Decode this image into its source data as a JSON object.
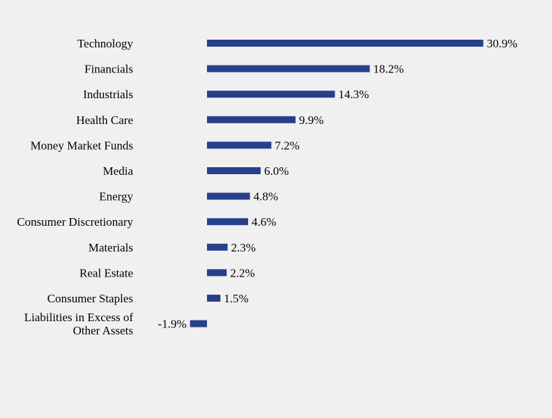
{
  "chart_data": {
    "type": "bar",
    "orientation": "horizontal",
    "categories": [
      "Technology",
      "Financials",
      "Industrials",
      "Health Care",
      "Money Market Funds",
      "Media",
      "Energy",
      "Consumer Discretionary",
      "Materials",
      "Real Estate",
      "Consumer Staples",
      "Liabilities in Excess of Other Assets"
    ],
    "category_lines": [
      [
        "Technology"
      ],
      [
        "Financials"
      ],
      [
        "Industrials"
      ],
      [
        "Health Care"
      ],
      [
        "Money Market Funds"
      ],
      [
        "Media"
      ],
      [
        "Energy"
      ],
      [
        "Consumer Discretionary"
      ],
      [
        "Materials"
      ],
      [
        "Real Estate"
      ],
      [
        "Consumer Staples"
      ],
      [
        "Liabilities in Excess of",
        "Other Assets"
      ]
    ],
    "values": [
      30.9,
      18.2,
      14.3,
      9.9,
      7.2,
      6.0,
      4.8,
      4.6,
      2.3,
      2.2,
      1.5,
      -1.9
    ],
    "value_labels": [
      "30.9%",
      "18.2%",
      "14.3%",
      "9.9%",
      "7.2%",
      "6.0%",
      "4.8%",
      "4.6%",
      "2.3%",
      "2.2%",
      "1.5%",
      "-1.9%"
    ],
    "unit": "%",
    "bar_color": "#27408b",
    "grid": false,
    "legend": "none"
  }
}
